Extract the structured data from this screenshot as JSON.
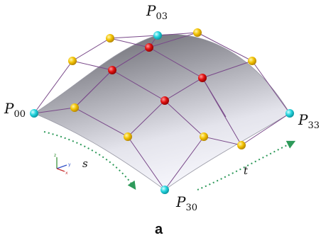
{
  "figure": {
    "caption": "a",
    "point_labels": {
      "p00": {
        "base": "P",
        "sub": "00"
      },
      "p03": {
        "base": "P",
        "sub": "03"
      },
      "p30": {
        "base": "P",
        "sub": "30"
      },
      "p33": {
        "base": "P",
        "sub": "33"
      }
    },
    "param_s": "s",
    "param_t": "t",
    "axis_labels": {
      "x": "x",
      "y": "y",
      "z": "z"
    },
    "colors": {
      "corner_point": "#22d3dd",
      "edge_point": "#f2c200",
      "interior_point": "#e01010",
      "control_net": "#7a4a8a",
      "arrow": "#2e9a5a"
    }
  }
}
